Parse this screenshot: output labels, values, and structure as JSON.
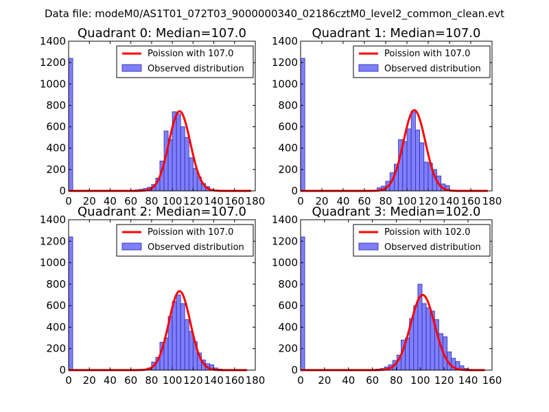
{
  "figure_title": "Data file: modeM0/AS1T01_072T03_9000000340_02186cztM0_level2_common_clean.evt",
  "colors": {
    "curve": "#ff0000",
    "bar_fill": "#7f7fff",
    "bar_edge": "#2a2aa0"
  },
  "chart_data": [
    {
      "type": "bar",
      "title": "Quadrant 0: Median=107.0",
      "legend": {
        "placement": "top-right",
        "curve_label": "Poission with 107.0",
        "bar_label": "Observed distribution"
      },
      "xlim": [
        0,
        180
      ],
      "ylim": [
        0,
        1400
      ],
      "xticks": [
        0,
        20,
        40,
        60,
        80,
        100,
        120,
        140,
        160,
        180
      ],
      "yticks": [
        0,
        200,
        400,
        600,
        800,
        1000,
        1200,
        1400
      ],
      "bin_width": 4.0,
      "bins": [
        [
          0,
          1240
        ],
        [
          64,
          10
        ],
        [
          68,
          15
        ],
        [
          72,
          22
        ],
        [
          76,
          35
        ],
        [
          80,
          60
        ],
        [
          84,
          120
        ],
        [
          88,
          280
        ],
        [
          92,
          560
        ],
        [
          96,
          480
        ],
        [
          100,
          740
        ],
        [
          104,
          720
        ],
        [
          108,
          600
        ],
        [
          112,
          500
        ],
        [
          116,
          310
        ],
        [
          120,
          210
        ],
        [
          124,
          130
        ],
        [
          128,
          70
        ],
        [
          132,
          40
        ],
        [
          136,
          15
        ],
        [
          140,
          10
        ],
        [
          144,
          5
        ]
      ],
      "poisson_mean": 107.0,
      "curve_peak": 745,
      "curve_xmax": 176
    },
    {
      "type": "bar",
      "title": "Quadrant 1: Median=107.0",
      "legend": {
        "placement": "top-right",
        "curve_label": "Poission with 107.0",
        "bar_label": "Observed distribution"
      },
      "xlim": [
        0,
        180
      ],
      "ylim": [
        0,
        1400
      ],
      "xticks": [
        0,
        20,
        40,
        60,
        80,
        100,
        120,
        140,
        160,
        180
      ],
      "yticks": [
        0,
        200,
        400,
        600,
        800,
        1000,
        1200,
        1400
      ],
      "bin_width": 4.0,
      "bins": [
        [
          0,
          1240
        ],
        [
          72,
          30
        ],
        [
          76,
          45
        ],
        [
          80,
          90
        ],
        [
          84,
          170
        ],
        [
          88,
          250
        ],
        [
          92,
          480
        ],
        [
          96,
          460
        ],
        [
          100,
          580
        ],
        [
          104,
          750
        ],
        [
          108,
          570
        ],
        [
          112,
          450
        ],
        [
          116,
          270
        ],
        [
          120,
          260
        ],
        [
          124,
          200
        ],
        [
          128,
          140
        ],
        [
          132,
          65
        ],
        [
          136,
          50
        ],
        [
          140,
          8
        ],
        [
          144,
          3
        ]
      ],
      "poisson_mean": 107.0,
      "curve_peak": 755,
      "curve_xmax": 176
    },
    {
      "type": "bar",
      "title": "Quadrant 2: Median=107.0",
      "legend": {
        "placement": "top-right",
        "curve_label": "Poission with 107.0",
        "bar_label": "Observed distribution"
      },
      "xlim": [
        0,
        180
      ],
      "ylim": [
        0,
        1400
      ],
      "xticks": [
        0,
        20,
        40,
        60,
        80,
        100,
        120,
        140,
        160,
        180
      ],
      "yticks": [
        0,
        200,
        400,
        600,
        800,
        1000,
        1200,
        1400
      ],
      "bin_width": 4.0,
      "bins": [
        [
          0,
          1240
        ],
        [
          72,
          10
        ],
        [
          76,
          20
        ],
        [
          80,
          75
        ],
        [
          84,
          120
        ],
        [
          88,
          260
        ],
        [
          92,
          300
        ],
        [
          96,
          500
        ],
        [
          100,
          640
        ],
        [
          104,
          700
        ],
        [
          108,
          620
        ],
        [
          112,
          470
        ],
        [
          116,
          360
        ],
        [
          120,
          265
        ],
        [
          124,
          160
        ],
        [
          128,
          95
        ],
        [
          132,
          60
        ],
        [
          136,
          50
        ],
        [
          140,
          20
        ],
        [
          144,
          10
        ],
        [
          148,
          6
        ]
      ],
      "poisson_mean": 107.0,
      "curve_peak": 735,
      "curve_xmax": 172
    },
    {
      "type": "bar",
      "title": "Quadrant 3: Median=102.0",
      "legend": {
        "placement": "top-right",
        "curve_label": "Poission with 102.0",
        "bar_label": "Observed distribution"
      },
      "xlim": [
        0,
        160
      ],
      "ylim": [
        0,
        1400
      ],
      "xticks": [
        0,
        20,
        40,
        60,
        80,
        100,
        120,
        140,
        160
      ],
      "yticks": [
        0,
        200,
        400,
        600,
        800,
        1000,
        1200,
        1400
      ],
      "bin_width": 3.5,
      "bins": [
        [
          0,
          1240
        ],
        [
          63,
          10
        ],
        [
          66.5,
          15
        ],
        [
          70,
          30
        ],
        [
          73.5,
          50
        ],
        [
          77,
          90
        ],
        [
          80.5,
          140
        ],
        [
          84,
          280
        ],
        [
          87.5,
          300
        ],
        [
          91,
          480
        ],
        [
          94.5,
          600
        ],
        [
          98,
          800
        ],
        [
          101.5,
          620
        ],
        [
          105,
          580
        ],
        [
          108.5,
          550
        ],
        [
          112,
          470
        ],
        [
          115.5,
          340
        ],
        [
          119,
          310
        ],
        [
          122.5,
          170
        ],
        [
          126,
          110
        ],
        [
          129.5,
          80
        ],
        [
          133,
          40
        ],
        [
          136.5,
          15
        ],
        [
          140,
          8
        ],
        [
          143.5,
          3
        ]
      ],
      "poisson_mean": 102.0,
      "curve_peak": 700,
      "curve_xmax": 154
    }
  ]
}
